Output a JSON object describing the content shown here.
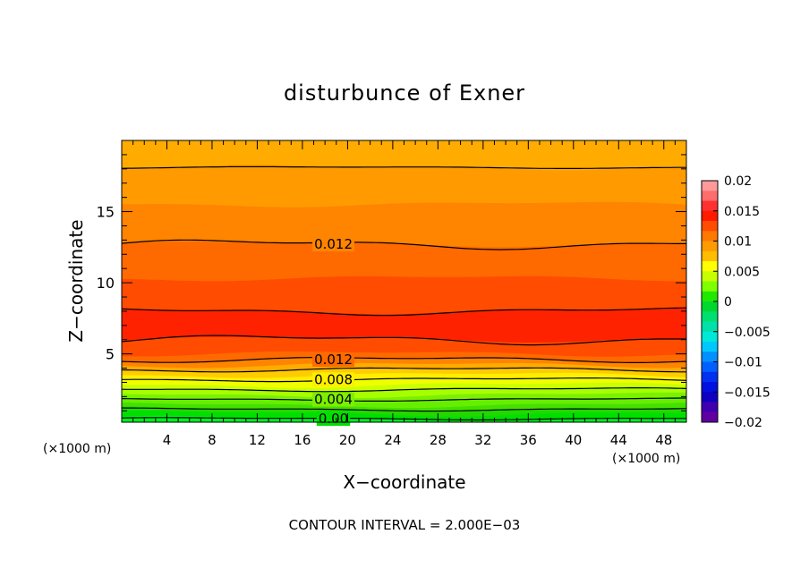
{
  "chart_data": {
    "type": "heatmap",
    "title": "disturbunce of Exner",
    "xlabel": "X−coordinate",
    "ylabel": "Z−coordinate",
    "x_unit_left": "(×1000 m)",
    "x_unit_right": "(×1000 m)",
    "footer": "CONTOUR INTERVAL = 2.000E−03",
    "xlim": [
      0,
      50
    ],
    "ylim": [
      0.2,
      20
    ],
    "xticks": [
      4,
      8,
      12,
      16,
      20,
      24,
      28,
      32,
      36,
      40,
      44,
      48
    ],
    "yticks": [
      5,
      10,
      15
    ],
    "grid": false,
    "contour_interval": 0.002,
    "contour_labels": [
      {
        "text": "0.012",
        "x": 17,
        "z": 12.7
      },
      {
        "text": "0.012",
        "x": 17,
        "z": 4.6
      },
      {
        "text": "0.008",
        "x": 17,
        "z": 3.2
      },
      {
        "text": "0.004",
        "x": 17,
        "z": 1.8
      },
      {
        "text": "0.00",
        "x": 17,
        "z": 0.45
      }
    ],
    "contour_lines": [
      {
        "z": 18.1,
        "amp": 0.05
      },
      {
        "z": 12.7,
        "amp": 0.25
      },
      {
        "z": 8.0,
        "amp": 0.2
      },
      {
        "z": 6.0,
        "amp": 0.25
      },
      {
        "z": 4.6,
        "amp": 0.15
      },
      {
        "z": 3.9,
        "amp": 0.12
      },
      {
        "z": 3.2,
        "amp": 0.1
      },
      {
        "z": 2.5,
        "amp": 0.1
      },
      {
        "z": 1.8,
        "amp": 0.08
      },
      {
        "z": 1.1,
        "amp": 0.08
      },
      {
        "z": 0.45,
        "amp": 0.06
      }
    ],
    "bands": [
      {
        "z0": 18.1,
        "z1": 20.0,
        "color": "#ffab00"
      },
      {
        "z0": 15.5,
        "z1": 18.1,
        "color": "#ff9b00"
      },
      {
        "z0": 12.7,
        "z1": 15.5,
        "color": "#ff8400"
      },
      {
        "z0": 10.3,
        "z1": 12.7,
        "color": "#ff6a00"
      },
      {
        "z0": 8.0,
        "z1": 10.3,
        "color": "#ff4c00"
      },
      {
        "z0": 6.0,
        "z1": 8.0,
        "color": "#ff2200"
      },
      {
        "z0": 5.0,
        "z1": 6.0,
        "color": "#ff4c00"
      },
      {
        "z0": 4.6,
        "z1": 5.0,
        "color": "#ff6a00"
      },
      {
        "z0": 4.2,
        "z1": 4.6,
        "color": "#ff8400"
      },
      {
        "z0": 3.9,
        "z1": 4.2,
        "color": "#ffab00"
      },
      {
        "z0": 3.5,
        "z1": 3.9,
        "color": "#ffcc00"
      },
      {
        "z0": 3.2,
        "z1": 3.5,
        "color": "#ffee00"
      },
      {
        "z0": 2.8,
        "z1": 3.2,
        "color": "#f0ff00"
      },
      {
        "z0": 2.5,
        "z1": 2.8,
        "color": "#ccff00"
      },
      {
        "z0": 2.1,
        "z1": 2.5,
        "color": "#a6ff00"
      },
      {
        "z0": 1.8,
        "z1": 2.1,
        "color": "#7cf000"
      },
      {
        "z0": 1.4,
        "z1": 1.8,
        "color": "#66ee00"
      },
      {
        "z0": 1.1,
        "z1": 1.4,
        "color": "#44e000"
      },
      {
        "z0": 0.8,
        "z1": 1.1,
        "color": "#22d800"
      },
      {
        "z0": 0.45,
        "z1": 0.8,
        "color": "#00e000"
      },
      {
        "z0": 0.2,
        "z1": 0.45,
        "color": "#00ee22"
      }
    ],
    "colorbar": {
      "labels": [
        "0.02",
        "0.015",
        "0.01",
        "0.005",
        "0",
        "−0.005",
        "−0.01",
        "−0.015",
        "−0.02"
      ],
      "values": [
        0.02,
        0.015,
        0.01,
        0.005,
        0,
        -0.005,
        -0.01,
        -0.015,
        -0.02
      ],
      "vmin": -0.02,
      "vmax": 0.02,
      "colors_top_to_bottom": [
        "#ff9a9a",
        "#ff6c6c",
        "#ff3030",
        "#ff1a00",
        "#ff4c00",
        "#ff7800",
        "#ff9a00",
        "#ffbc00",
        "#ffff00",
        "#c8ff00",
        "#80ff00",
        "#20e800",
        "#00d830",
        "#00e070",
        "#00e0a8",
        "#00e8d8",
        "#00c8ff",
        "#0090ff",
        "#0060ff",
        "#0030f0",
        "#0010e0",
        "#1000c0",
        "#4000b0",
        "#6000a0"
      ]
    }
  }
}
